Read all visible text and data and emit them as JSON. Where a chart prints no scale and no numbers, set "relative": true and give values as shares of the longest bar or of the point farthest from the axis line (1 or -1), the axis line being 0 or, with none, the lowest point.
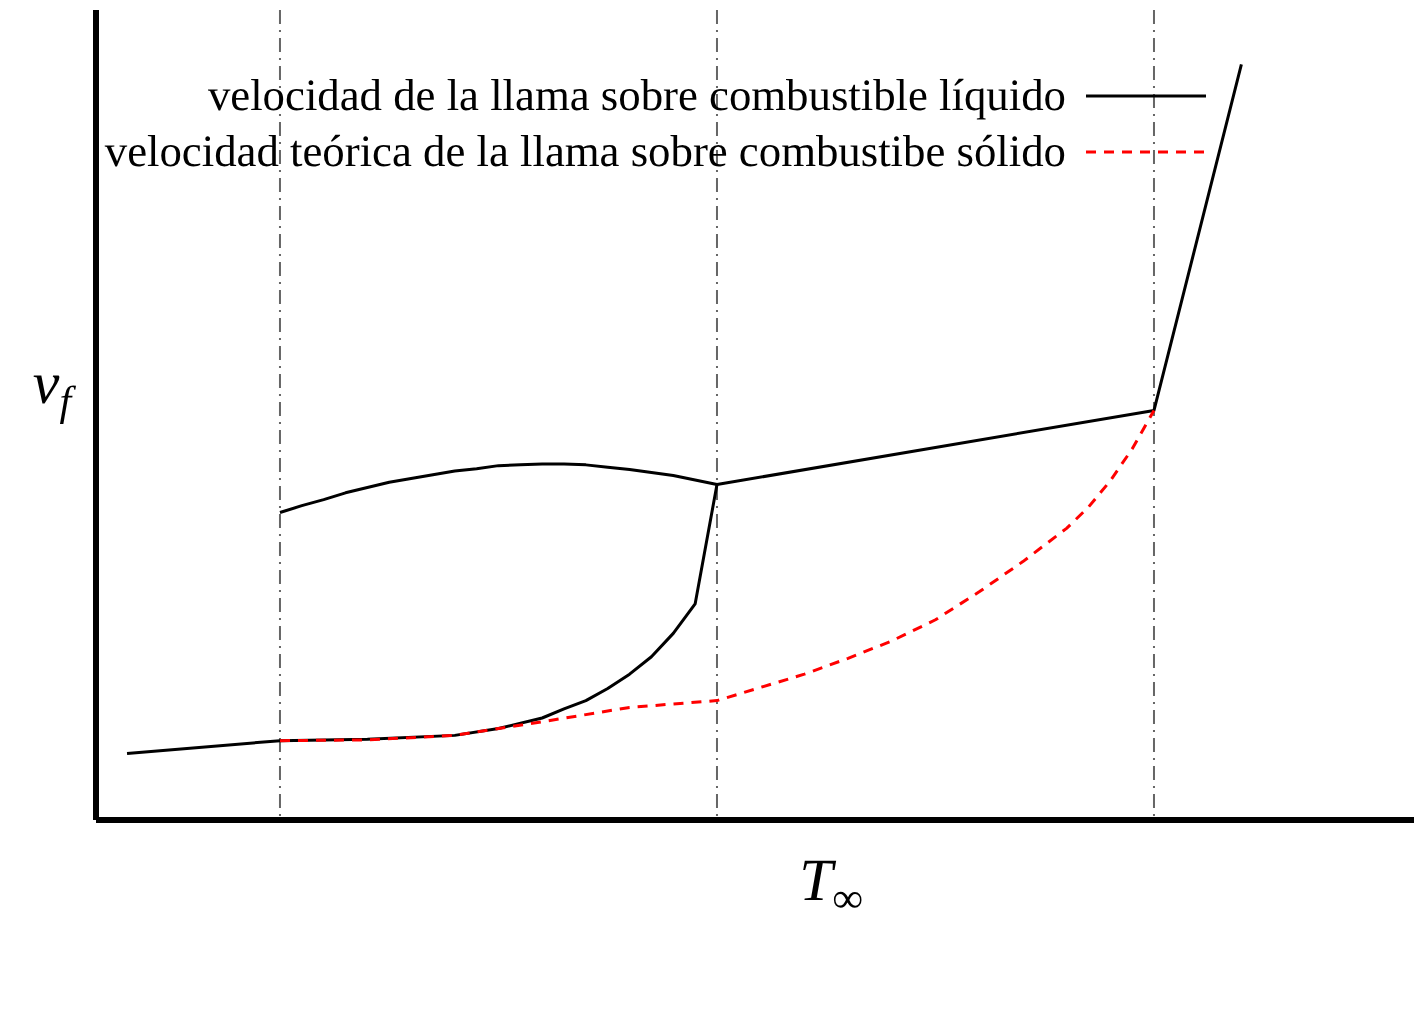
{
  "chart_data": {
    "type": "line",
    "relative": true,
    "xlabel": "T$_{∞}$",
    "ylabel": "v$_{f}$",
    "legend": "top",
    "grid": "x",
    "categories": [
      null,
      null,
      null,
      null,
      null,
      null,
      null,
      null,
      null,
      null,
      null,
      null,
      null,
      null,
      null,
      null,
      null,
      null,
      null,
      null,
      null,
      null,
      null,
      null,
      null,
      null,
      null,
      null,
      null,
      null,
      null,
      null,
      null,
      null,
      null,
      null,
      null,
      null,
      null,
      null,
      null,
      null,
      null,
      null,
      null,
      null,
      null,
      null,
      null,
      null,
      null,
      null,
      null
    ],
    "series": [
      {
        "name": "velocidad de la llama sobre combustible líquido",
        "color": "#000000",
        "line_style": "solid",
        "values": [
          null,
          null,
          null,
          null,
          null,
          null,
          null,
          null,
          0.407,
          0.416,
          0.424,
          0.433,
          0.44,
          0.447,
          0.452,
          0.457,
          0.462,
          0.465,
          0.469,
          0.47,
          0.471,
          0.471,
          0.47,
          0.467,
          0.464,
          0.46,
          0.456,
          0.45,
          0.444,
          null,
          null,
          null,
          null,
          null,
          null,
          null,
          null,
          null,
          null,
          null,
          null,
          null,
          null,
          null,
          null,
          null,
          null,
          null,
          0.542,
          null,
          null,
          null,
          1
        ]
      },
      {
        "color": "#000000",
        "line_style": "solid",
        "values": [
          null,
          0.088,
          null,
          null,
          null,
          null,
          null,
          null,
          0.105,
          null,
          null,
          null,
          0.107,
          null,
          null,
          null,
          0.112,
          null,
          0.121,
          null,
          0.135,
          0.147,
          0.158,
          0.174,
          0.193,
          0.216,
          0.247,
          0.286,
          0.444,
          null,
          null,
          null,
          null,
          null,
          null,
          null,
          null,
          null,
          null,
          null,
          null,
          null,
          null,
          null,
          null,
          null,
          null,
          null,
          null,
          null,
          null,
          null,
          null
        ]
      },
      {
        "name": "velocidad teórica de la llama sobre combustibe sólido",
        "color": "#ff0000",
        "line_style": "dashed",
        "values": [
          null,
          null,
          null,
          null,
          null,
          null,
          null,
          null,
          0.105,
          null,
          null,
          null,
          0.106,
          null,
          null,
          null,
          0.112,
          null,
          null,
          null,
          0.13,
          null,
          null,
          null,
          0.149,
          null,
          null,
          null,
          0.158,
          null,
          null,
          null,
          0.193,
          null,
          0.214,
          null,
          0.237,
          null,
          0.265,
          null,
          0.302,
          null,
          0.342,
          null,
          0.386,
          0.414,
          0.449,
          0.491,
          0.542,
          null,
          null,
          null,
          null
        ]
      }
    ]
  }
}
